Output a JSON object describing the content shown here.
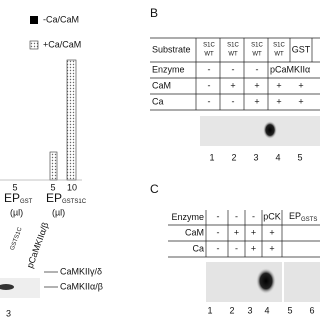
{
  "panel_a": {
    "legend": [
      "-Ca/CaM",
      "+Ca/CaM"
    ],
    "doses": [
      "5",
      "5",
      "10"
    ],
    "groups": [
      {
        "name": "EP",
        "sub": "GST",
        "unit": "(µl)"
      },
      {
        "name": "EP",
        "sub": "GSTS1C",
        "unit": "(µl)"
      }
    ],
    "blot_headers": [
      "GSTS1C",
      "pCaMKIIα/β"
    ],
    "bands": [
      "CaMKIIγ/δ",
      "CaMKIIα/β"
    ],
    "lane": "3"
  },
  "panel_b": {
    "label": "B",
    "row_labels": [
      "Substrate",
      "Enzyme",
      "CaM",
      "Ca"
    ],
    "substrate": [
      [
        "S1C",
        "WT"
      ],
      [
        "S1C",
        "WT"
      ],
      [
        "S1C",
        "WT"
      ],
      [
        "S1C",
        "WT"
      ],
      [
        "GST"
      ]
    ],
    "enzyme": [
      "-",
      "-",
      "-",
      "pCaMKIIα"
    ],
    "cam": [
      "-",
      "+",
      "+",
      "+",
      "+"
    ],
    "ca": [
      "-",
      "-",
      "+",
      "+",
      "+"
    ],
    "lanes": [
      "1",
      "2",
      "3",
      "4",
      "5"
    ]
  },
  "panel_c": {
    "label": "C",
    "row_labels": [
      "Enzyme",
      "CaM",
      "Ca"
    ],
    "enzyme": [
      "-",
      "-",
      "-",
      "pCK"
    ],
    "enzyme_ep": {
      "name": "EP",
      "sub": "GSTS"
    },
    "cam": [
      "-",
      "+",
      "+",
      "+"
    ],
    "ca": [
      "-",
      "-",
      "+",
      "+"
    ],
    "lanes": [
      "1",
      "2",
      "3",
      "4",
      "5",
      "6"
    ]
  }
}
